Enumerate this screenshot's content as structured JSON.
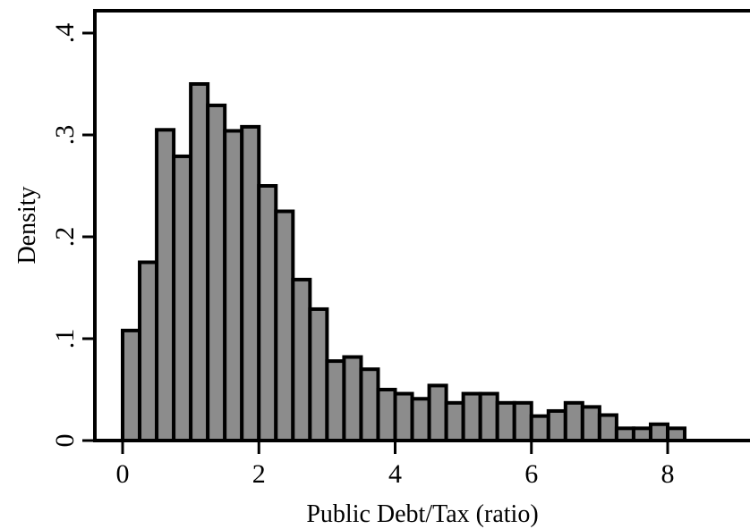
{
  "chart_data": {
    "type": "bar",
    "histogram": true,
    "title": "",
    "xlabel": "Public Debt/Tax (ratio)",
    "ylabel": "Density",
    "xlim": [
      -0.35,
      9.1
    ],
    "ylim": [
      0,
      0.4
    ],
    "bin_width": 0.25,
    "bin_start": 0,
    "x_ticks": [
      0,
      2,
      4,
      6,
      8
    ],
    "x_tick_labels": [
      "0",
      "2",
      "4",
      "6",
      "8"
    ],
    "y_ticks": [
      0,
      0.1,
      0.2,
      0.3,
      0.4
    ],
    "y_tick_labels": [
      "0",
      ".1",
      ".2",
      ".3",
      ".4"
    ],
    "values": [
      0.108,
      0.175,
      0.305,
      0.279,
      0.35,
      0.329,
      0.304,
      0.308,
      0.25,
      0.225,
      0.158,
      0.129,
      0.078,
      0.082,
      0.07,
      0.05,
      0.046,
      0.041,
      0.054,
      0.037,
      0.046,
      0.046,
      0.037,
      0.037,
      0.024,
      0.029,
      0.037,
      0.033,
      0.025,
      0.012,
      0.012,
      0.016,
      0.012
    ],
    "bar_color": "#8c8c8c",
    "edge_color": "#000000",
    "grid": false
  }
}
